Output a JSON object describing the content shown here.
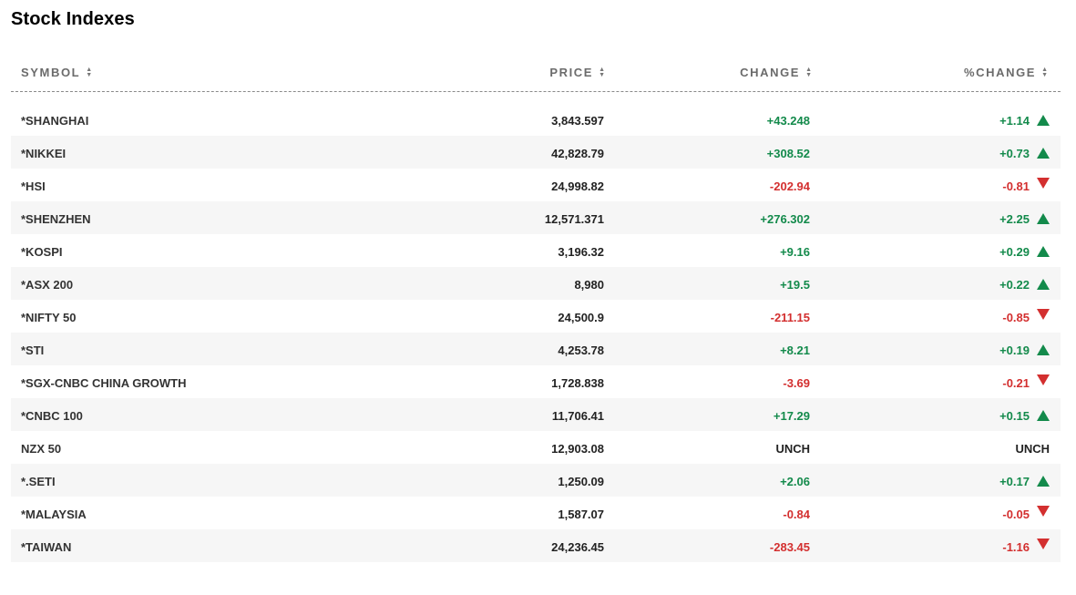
{
  "title": "Stock Indexes",
  "columns": {
    "symbol": "SYMBOL",
    "price": "PRICE",
    "change": "CHANGE",
    "pct_change": "%CHANGE"
  },
  "colors": {
    "up": "#138a4b",
    "down": "#d32f2f"
  },
  "rows": [
    {
      "symbol": "*SHANGHAI",
      "price": "3,843.597",
      "change": "+43.248",
      "pct": "+1.14",
      "dir": "up"
    },
    {
      "symbol": "*NIKKEI",
      "price": "42,828.79",
      "change": "+308.52",
      "pct": "+0.73",
      "dir": "up"
    },
    {
      "symbol": "*HSI",
      "price": "24,998.82",
      "change": "-202.94",
      "pct": "-0.81",
      "dir": "down"
    },
    {
      "symbol": "*SHENZHEN",
      "price": "12,571.371",
      "change": "+276.302",
      "pct": "+2.25",
      "dir": "up"
    },
    {
      "symbol": "*KOSPI",
      "price": "3,196.32",
      "change": "+9.16",
      "pct": "+0.29",
      "dir": "up"
    },
    {
      "symbol": "*ASX 200",
      "price": "8,980",
      "change": "+19.5",
      "pct": "+0.22",
      "dir": "up"
    },
    {
      "symbol": "*NIFTY 50",
      "price": "24,500.9",
      "change": "-211.15",
      "pct": "-0.85",
      "dir": "down"
    },
    {
      "symbol": "*STI",
      "price": "4,253.78",
      "change": "+8.21",
      "pct": "+0.19",
      "dir": "up"
    },
    {
      "symbol": "*SGX-CNBC CHINA GROWTH",
      "price": "1,728.838",
      "change": "-3.69",
      "pct": "-0.21",
      "dir": "down"
    },
    {
      "symbol": "*CNBC 100",
      "price": "11,706.41",
      "change": "+17.29",
      "pct": "+0.15",
      "dir": "up"
    },
    {
      "symbol": "NZX 50",
      "price": "12,903.08",
      "change": "UNCH",
      "pct": "UNCH",
      "dir": "flat"
    },
    {
      "symbol": "*.SETI",
      "price": "1,250.09",
      "change": "+2.06",
      "pct": "+0.17",
      "dir": "up"
    },
    {
      "symbol": "*MALAYSIA",
      "price": "1,587.07",
      "change": "-0.84",
      "pct": "-0.05",
      "dir": "down"
    },
    {
      "symbol": "*TAIWAN",
      "price": "24,236.45",
      "change": "-283.45",
      "pct": "-1.16",
      "dir": "down"
    }
  ]
}
